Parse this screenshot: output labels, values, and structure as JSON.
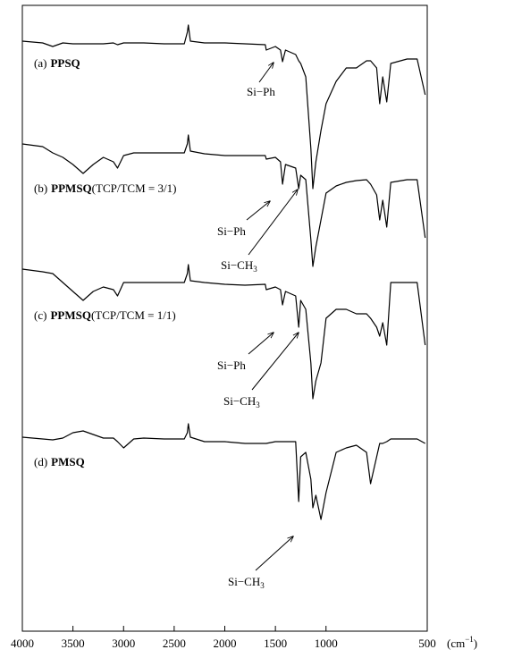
{
  "chart_data": {
    "type": "line",
    "xlim": [
      4000,
      500
    ],
    "xticks": [
      4000,
      3500,
      3000,
      2500,
      2000,
      1500,
      1000,
      500
    ],
    "ylim": [
      0,
      700
    ],
    "x_label": {
      "text": "(cm",
      "sup": "−1",
      "close": ")"
    },
    "x": [
      4000,
      3800,
      3700,
      3600,
      3500,
      3400,
      3300,
      3200,
      3100,
      3060,
      3000,
      2900,
      2800,
      2600,
      2400,
      2370,
      2360,
      2340,
      2200,
      2000,
      1800,
      1600,
      1590,
      1500,
      1450,
      1430,
      1400,
      1300,
      1270,
      1250,
      1200,
      1150,
      1130,
      1100,
      1050,
      1000,
      950,
      900,
      850,
      800,
      780,
      750,
      735,
      720,
      700,
      680,
      600,
      550,
      510
    ],
    "series": [
      {
        "name": "(a) PPSQ",
        "color": "#000000",
        "values": [
          660,
          658,
          654,
          658,
          657,
          657,
          657,
          657,
          658,
          656,
          658,
          658,
          658,
          657,
          657,
          670,
          678,
          660,
          658,
          658,
          657,
          656,
          650,
          654,
          650,
          637,
          650,
          645,
          638,
          635,
          620,
          540,
          495,
          525,
          560,
          590,
          615,
          630,
          630,
          638,
          638,
          630,
          590,
          620,
          592,
          635,
          640,
          640,
          600
        ]
      },
      {
        "name": "(b) PPMSQ(TCP/TCM = 3/1)",
        "color": "#000000",
        "values": [
          545,
          542,
          535,
          530,
          522,
          512,
          522,
          530,
          525,
          518,
          532,
          535,
          535,
          535,
          535,
          545,
          555,
          537,
          534,
          532,
          532,
          532,
          528,
          530,
          525,
          500,
          522,
          518,
          495,
          510,
          505,
          438,
          408,
          430,
          460,
          490,
          498,
          502,
          504,
          505,
          500,
          488,
          460,
          482,
          452,
          502,
          505,
          505,
          440
        ]
      },
      {
        "name": "(c) PPMSQ(TCP/TCM = 1/1)",
        "color": "#000000",
        "values": [
          405,
          402,
          400,
          390,
          380,
          370,
          380,
          385,
          382,
          375,
          390,
          390,
          390,
          390,
          390,
          400,
          410,
          392,
          390,
          388,
          387,
          388,
          382,
          385,
          382,
          365,
          380,
          375,
          340,
          370,
          360,
          300,
          260,
          280,
          300,
          350,
          360,
          360,
          355,
          355,
          350,
          340,
          330,
          345,
          320,
          390,
          390,
          390,
          320
        ]
      },
      {
        "name": "(d) PMSQ",
        "color": "#000000",
        "values": [
          217,
          215,
          214,
          216,
          222,
          224,
          220,
          216,
          216,
          212,
          205,
          215,
          216,
          215,
          215,
          222,
          232,
          217,
          212,
          212,
          210,
          210,
          210,
          212,
          212,
          212,
          212,
          212,
          145,
          195,
          200,
          170,
          138,
          152,
          125,
          155,
          200,
          205,
          208,
          200,
          165,
          195,
          210,
          210,
          212,
          215,
          215,
          215,
          210
        ]
      }
    ],
    "labels": [
      {
        "tag": "(a)",
        "name": "PPSQ"
      },
      {
        "tag": "(b)",
        "name": "PPMSQ",
        "condition": "(TCP/TCM = 3/1)"
      },
      {
        "tag": "(c)",
        "name": "PPMSQ",
        "condition": "(TCP/TCM = 1/1)"
      },
      {
        "tag": "(d)",
        "name": "PMSQ"
      }
    ],
    "annotations": [
      {
        "text": "Si−Ph"
      },
      {
        "text": "Si−Ph"
      },
      {
        "text": "Si−CH",
        "sub": "3"
      },
      {
        "text": "Si−Ph"
      },
      {
        "text": "Si−CH",
        "sub": "3"
      },
      {
        "text": "Si−CH",
        "sub": "3"
      }
    ]
  }
}
